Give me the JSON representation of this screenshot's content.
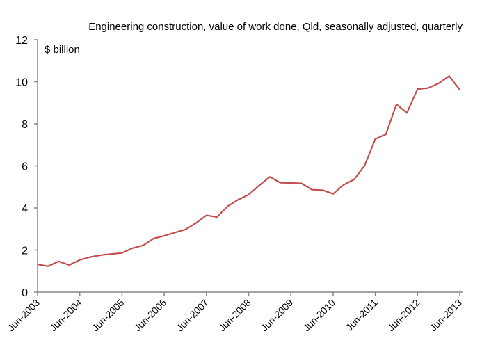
{
  "chart_data": {
    "type": "line",
    "title": "Engineering construction, value of work done, Qld, seasonally adjusted, quarterly",
    "ylabel": "$ billion",
    "xlabel": "",
    "ylim": [
      0,
      12
    ],
    "yticks": [
      0,
      2,
      4,
      6,
      8,
      10,
      12
    ],
    "ytick_labels": [
      "0",
      "2",
      "4",
      "6",
      "8",
      "10",
      "12"
    ],
    "xtick_labels": [
      "Jun-2003",
      "Jun-2004",
      "Jun-2005",
      "Jun-2006",
      "Jun-2007",
      "Jun-2008",
      "Jun-2009",
      "Jun-2010",
      "Jun-2011",
      "Jun-2012",
      "Jun-2013"
    ],
    "xtick_every_n_quarters": 4,
    "grid": false,
    "legend": "none",
    "series": [
      {
        "name": "Engineering construction, Qld",
        "color": "#C0504D",
        "x": [
          "Jun-2003",
          "Sep-2003",
          "Dec-2003",
          "Mar-2004",
          "Jun-2004",
          "Sep-2004",
          "Dec-2004",
          "Mar-2005",
          "Jun-2005",
          "Sep-2005",
          "Dec-2005",
          "Mar-2006",
          "Jun-2006",
          "Sep-2006",
          "Dec-2006",
          "Mar-2007",
          "Jun-2007",
          "Sep-2007",
          "Dec-2007",
          "Mar-2008",
          "Jun-2008",
          "Sep-2008",
          "Dec-2008",
          "Mar-2009",
          "Jun-2009",
          "Sep-2009",
          "Dec-2009",
          "Mar-2010",
          "Jun-2010",
          "Sep-2010",
          "Dec-2010",
          "Mar-2011",
          "Jun-2011",
          "Sep-2011",
          "Dec-2011",
          "Mar-2012",
          "Jun-2012",
          "Sep-2012",
          "Dec-2012",
          "Mar-2013",
          "Jun-2013"
        ],
        "values": [
          1.32,
          1.23,
          1.46,
          1.29,
          1.53,
          1.67,
          1.76,
          1.81,
          1.86,
          2.09,
          2.22,
          2.55,
          2.68,
          2.83,
          2.98,
          3.28,
          3.65,
          3.57,
          4.08,
          4.39,
          4.63,
          5.07,
          5.48,
          5.2,
          5.19,
          5.17,
          4.87,
          4.85,
          4.67,
          5.1,
          5.36,
          6.03,
          7.28,
          7.5,
          8.93,
          8.52,
          9.65,
          9.7,
          9.92,
          10.27,
          9.62
        ]
      }
    ]
  }
}
